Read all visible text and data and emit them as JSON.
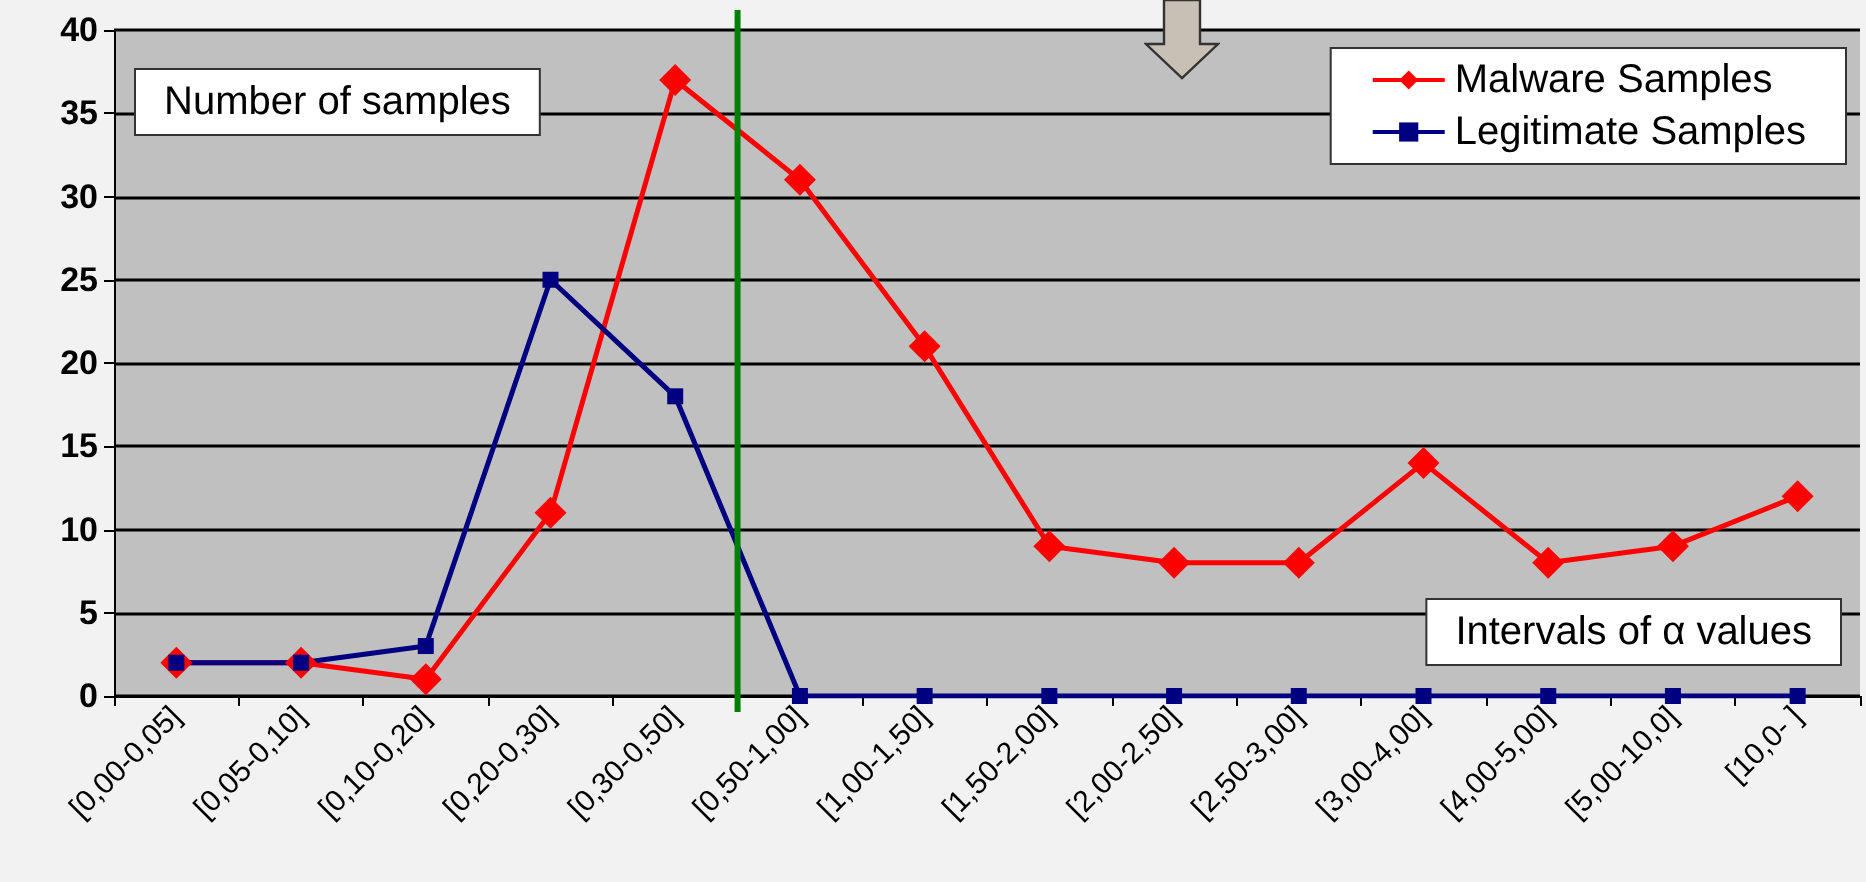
{
  "chart_data": {
    "type": "line",
    "categories": [
      "[0,00-0,05]",
      "[0,05-0,10]",
      "[0,10-0,20]",
      "[0,20-0,30]",
      "[0,30-0,50]",
      "[0,50-1,00]",
      "[1,00-1,50]",
      "[1,50-2,00]",
      "[2,00-2,50]",
      "[2,50-3,00]",
      "[3,00-4,00]",
      "[4,00-5,00]",
      "[5,00-10,0]",
      "[10,0- ]"
    ],
    "series": [
      {
        "name": "Malware Samples",
        "color": "#ff0000",
        "marker": "diamond",
        "values": [
          2,
          2,
          1,
          11,
          37,
          31,
          21,
          9,
          8,
          8,
          14,
          8,
          9,
          12
        ]
      },
      {
        "name": "Legitimate Samples",
        "color": "#000080",
        "marker": "square",
        "values": [
          2,
          2,
          3,
          25,
          18,
          0,
          0,
          0,
          0,
          0,
          0,
          0,
          0,
          0
        ]
      }
    ],
    "annotations": [
      "Number of samples",
      "Intervals of α values"
    ],
    "ref_lines": [
      {
        "axis": "x",
        "value": "[0,50-1,00]",
        "label": null,
        "color": "#008000"
      }
    ],
    "ylim": [
      0,
      40
    ],
    "yticks": [
      0,
      5,
      10,
      15,
      20,
      25,
      30,
      35,
      40
    ],
    "grid": "y",
    "legend": "top right",
    "line_style": "solid"
  }
}
